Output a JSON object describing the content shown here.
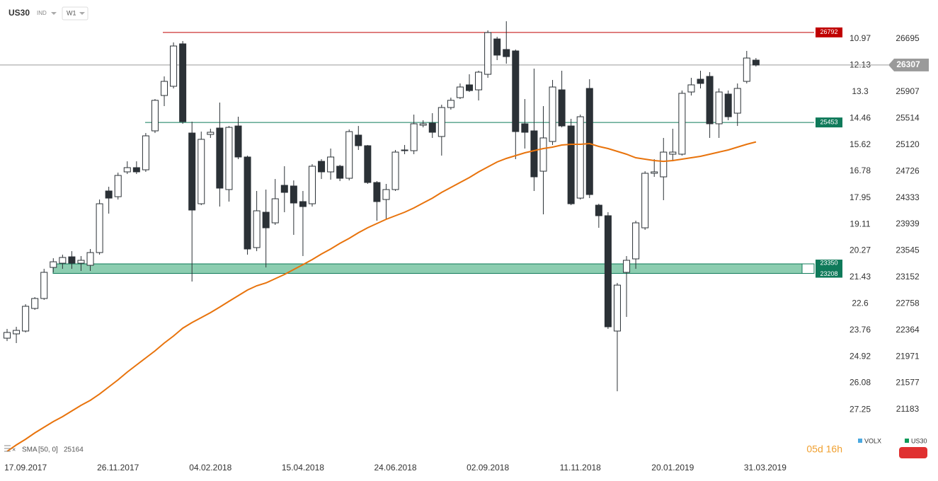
{
  "chart_data": {
    "type": "candlestick",
    "symbol": "US30",
    "instrument": "IND",
    "timeframe": "W1",
    "categories": [
      null,
      null,
      "17.09.2017",
      null,
      null,
      null,
      null,
      null,
      null,
      null,
      null,
      null,
      "26.11.2017",
      null,
      null,
      null,
      null,
      null,
      null,
      null,
      null,
      null,
      "04.02.2018",
      null,
      null,
      null,
      null,
      null,
      null,
      null,
      null,
      null,
      "15.04.2018",
      null,
      null,
      null,
      null,
      null,
      null,
      null,
      null,
      null,
      "24.06.2018",
      null,
      null,
      null,
      null,
      null,
      null,
      null,
      null,
      null,
      "02.09.2018",
      null,
      null,
      null,
      null,
      null,
      null,
      null,
      null,
      null,
      "11.11.2018",
      null,
      null,
      null,
      null,
      null,
      null,
      null,
      null,
      null,
      "20.01.2019",
      null,
      null,
      null,
      null,
      null,
      null,
      null,
      null,
      null,
      "31.03.2019"
    ],
    "open": [
      22245,
      22309,
      22351,
      22687,
      22835,
      23297,
      23360,
      23455,
      23360,
      23329,
      23518,
      24434,
      24349,
      24718,
      24781,
      24749,
      25328,
      25854,
      25991,
      26622,
      25296,
      24244,
      25275,
      25370,
      24455,
      25401,
      24939,
      23592,
      24118,
      23960,
      24518,
      24508,
      24276,
      24244,
      24875,
      24718,
      24802,
      24623,
      25265,
      25107,
      24560,
      24307,
      24455,
      25044,
      25033,
      25412,
      25443,
      25244,
      25675,
      25822,
      26012,
      25938,
      26169,
      26695,
      26538,
      26517,
      25433,
      25328,
      24728,
      25170,
      25938,
      25401,
      24328,
      25959,
      24223,
      24066,
      22351,
      23224,
      23424,
      23886,
      24697,
      24644,
      24981,
      24981,
      25906,
      26096,
      26138,
      25433,
      25875,
      25591,
      26064,
      26380,
      null
    ],
    "high": [
      22382,
      22414,
      22750,
      22856,
      23276,
      23434,
      23487,
      23539,
      23466,
      23571,
      24307,
      24497,
      24707,
      24875,
      24875,
      25296,
      25801,
      26138,
      26643,
      26664,
      25465,
      25317,
      25359,
      25749,
      25401,
      25538,
      24960,
      24434,
      24455,
      24612,
      24802,
      24591,
      24434,
      24833,
      24907,
      25065,
      24823,
      25349,
      25401,
      25118,
      24581,
      24539,
      25044,
      25118,
      25570,
      25486,
      25591,
      25717,
      25822,
      26033,
      26169,
      26222,
      26822,
      26727,
      26958,
      26538,
      25801,
      26254,
      25696,
      26085,
      26222,
      25507,
      25570,
      26096,
      24244,
      24118,
      23066,
      23466,
      23992,
      24728,
      24907,
      25223,
      25359,
      25928,
      26117,
      26222,
      26201,
      25959,
      25928,
      26033,
      26517,
      26411,
      null
    ],
    "low": [
      22203,
      22172,
      22330,
      22666,
      22814,
      23224,
      23276,
      23276,
      23245,
      23245,
      23487,
      24097,
      24307,
      24686,
      24686,
      24718,
      25296,
      25696,
      25959,
      25433,
      23087,
      24223,
      25223,
      24202,
      24276,
      24907,
      23487,
      23539,
      23297,
      23929,
      24118,
      23781,
      23466,
      24202,
      24612,
      24602,
      24581,
      24591,
      25044,
      24539,
      23992,
      24013,
      24434,
      24981,
      24981,
      25380,
      25223,
      24960,
      25643,
      25801,
      25906,
      25780,
      26117,
      26380,
      26327,
      24907,
      25065,
      24434,
      24086,
      25118,
      25380,
      24223,
      24307,
      24328,
      23886,
      22382,
      21456,
      22561,
      23276,
      23855,
      24644,
      24297,
      24875,
      24960,
      25854,
      25959,
      25223,
      25223,
      25486,
      25401,
      26033,
      26285,
      null
    ],
    "close": [
      22330,
      22361,
      22719,
      22835,
      23224,
      23381,
      23445,
      23360,
      23403,
      23518,
      24244,
      24328,
      24665,
      24781,
      24718,
      25254,
      25782,
      26064,
      26590,
      25465,
      24150,
      25202,
      25307,
      24476,
      25380,
      24939,
      23571,
      24139,
      23886,
      24318,
      24413,
      24255,
      24202,
      24802,
      24718,
      24939,
      24623,
      25317,
      25107,
      24560,
      24276,
      24455,
      25012,
      25033,
      25433,
      25433,
      25307,
      25675,
      25782,
      25980,
      25927,
      26201,
      26790,
      26454,
      26432,
      25317,
      25307,
      24644,
      25223,
      25980,
      25401,
      24244,
      25538,
      24381,
      24066,
      22414,
      23034,
      23403,
      23960,
      24697,
      24718,
      25012,
      25012,
      25886,
      26012,
      26033,
      25433,
      25906,
      25538,
      25959,
      26411,
      26307,
      null
    ],
    "up_color": "#ffffff",
    "down_color": "#2b3136",
    "edge_color": "#2b3136",
    "sma": {
      "name": "SMA",
      "params": "[50, 0]",
      "value": 25164,
      "color": "#e8730c",
      "values": [
        20562,
        20657,
        20741,
        20836,
        20920,
        21004,
        21078,
        21162,
        21246,
        21320,
        21414,
        21520,
        21625,
        21741,
        21846,
        21951,
        22056,
        22172,
        22277,
        22393,
        22477,
        22551,
        22624,
        22708,
        22793,
        22877,
        22961,
        23024,
        23066,
        23129,
        23192,
        23266,
        23339,
        23413,
        23497,
        23571,
        23655,
        23729,
        23813,
        23887,
        23950,
        24013,
        24066,
        24118,
        24181,
        24255,
        24328,
        24413,
        24486,
        24560,
        24634,
        24718,
        24791,
        24865,
        24918,
        24960,
        25002,
        25033,
        25065,
        25086,
        25118,
        25128,
        25128,
        25139,
        25096,
        25065,
        25023,
        24981,
        24928,
        24907,
        24886,
        24875,
        24886,
        24907,
        24928,
        24949,
        24981,
        25012,
        25044,
        25086,
        25128,
        25164,
        null
      ]
    },
    "levels": [
      {
        "value": 26792,
        "color": "#c00000"
      },
      {
        "value": 25453,
        "color": "#0f7a5a"
      }
    ],
    "zone": {
      "top": 23350,
      "bottom": 23208,
      "color": "#8ccdb0",
      "edge": "#0f7a5a"
    },
    "last_price": {
      "value": 26307,
      "color": "#9a9a9a"
    },
    "ylim": [
      20752,
      27274
    ],
    "yticks": [
      26695,
      25907,
      25514,
      25120,
      24726,
      24333,
      23939,
      23545,
      23152,
      22758,
      22364,
      21971,
      21577,
      21183
    ],
    "y2lim": [
      28.52,
      9.26
    ],
    "y2ticks": [
      10.97,
      12.13,
      13.3,
      14.46,
      15.62,
      16.78,
      17.95,
      19.11,
      20.27,
      21.43,
      22.6,
      23.76,
      24.92,
      26.08,
      27.25
    ],
    "countdown": "05d 16h",
    "legend": [
      {
        "name": "VOLX",
        "color": "#4aa8e0"
      },
      {
        "name": "US30",
        "color": "#0e9b5a"
      }
    ]
  }
}
